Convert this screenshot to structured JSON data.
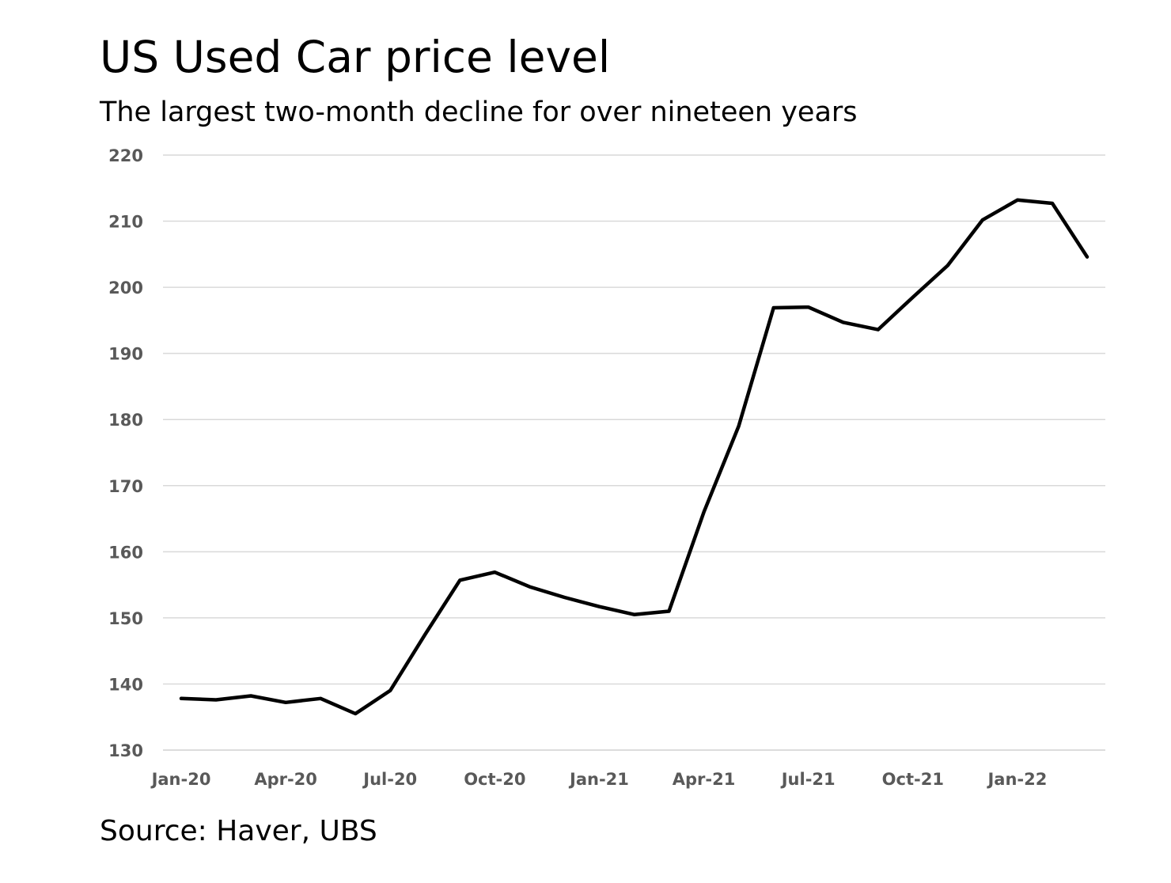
{
  "chart_data": {
    "type": "line",
    "title": "US Used Car price level",
    "subtitle": "The largest two-month decline for over nineteen years",
    "source": "Source: Haver, UBS",
    "xlabel": "",
    "ylabel": "",
    "ylim": [
      130,
      220
    ],
    "yticks": [
      130,
      140,
      150,
      160,
      170,
      180,
      190,
      200,
      210,
      220
    ],
    "xtick_labels": [
      "Jan-20",
      "Apr-20",
      "Jul-20",
      "Oct-20",
      "Jan-21",
      "Apr-21",
      "Jul-21",
      "Oct-21",
      "Jan-22"
    ],
    "grid": true,
    "line_color": "#000000",
    "grid_color": "#d9d9d9",
    "x": [
      "Jan-20",
      "Feb-20",
      "Mar-20",
      "Apr-20",
      "May-20",
      "Jun-20",
      "Jul-20",
      "Aug-20",
      "Sep-20",
      "Oct-20",
      "Nov-20",
      "Dec-20",
      "Jan-21",
      "Feb-21",
      "Mar-21",
      "Apr-21",
      "May-21",
      "Jun-21",
      "Jul-21",
      "Aug-21",
      "Sep-21",
      "Oct-21",
      "Nov-21",
      "Dec-21",
      "Jan-22",
      "Feb-22",
      "Mar-22"
    ],
    "series": [
      {
        "values": [
          137.8,
          137.6,
          138.2,
          137.2,
          137.8,
          135.5,
          139.0,
          147.5,
          155.7,
          156.9,
          154.7,
          153.1,
          151.7,
          150.5,
          151.0,
          166.0,
          179.0,
          196.9,
          197.0,
          194.7,
          193.6,
          198.5,
          203.3,
          210.2,
          213.2,
          212.7,
          204.6
        ]
      }
    ]
  }
}
